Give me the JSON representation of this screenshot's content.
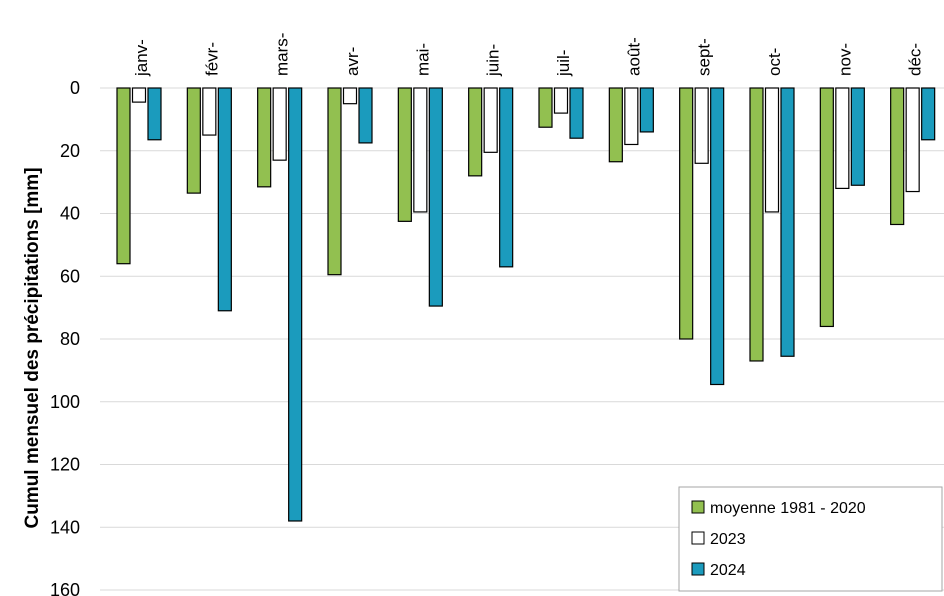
{
  "chart_data": {
    "type": "bar",
    "orientation": "downward",
    "categories": [
      "janv-",
      "févr-",
      "mars-",
      "avr-",
      "mai-",
      "juin-",
      "juil-",
      "août-",
      "sept-",
      "oct-",
      "nov-",
      "déc-"
    ],
    "series": [
      {
        "name": "moyenne 1981 - 2020",
        "color": "#92c050",
        "values": [
          56,
          33.5,
          31.5,
          59.5,
          42.5,
          28,
          12.5,
          23.5,
          80,
          87,
          76,
          43.5
        ]
      },
      {
        "name": "2023",
        "color": "#ffffff",
        "values": [
          4.5,
          15,
          23,
          5,
          39.5,
          20.5,
          8,
          18,
          24,
          39.5,
          32,
          33
        ]
      },
      {
        "name": "2024",
        "color": "#1b9bbd",
        "values": [
          16.5,
          71,
          138,
          17.5,
          69.5,
          57,
          16,
          14,
          94.5,
          85.5,
          31,
          16.5
        ]
      }
    ],
    "ylabel": "Cumul mensuel des précipitations [mm]",
    "ylim": [
      0,
      160
    ],
    "yticks": [
      "0",
      "20",
      "40",
      "60",
      "80",
      "100",
      "120",
      "140",
      "160"
    ],
    "grid": true,
    "legend_position": "bottom-right"
  }
}
